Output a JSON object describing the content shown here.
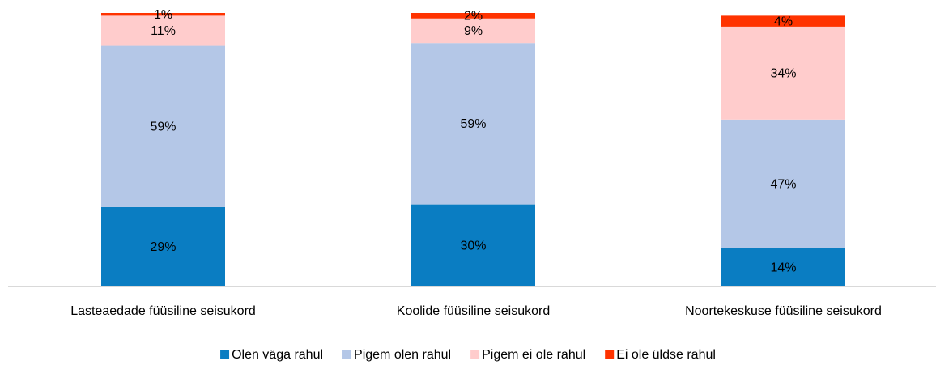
{
  "chart_data": {
    "type": "stacked_bar",
    "categories": [
      "Lasteaedade füüsiline seisukord",
      "Koolide füüsiline seisukord",
      "Noortekeskuse füüsiline seisukord"
    ],
    "series": [
      {
        "name": "Olen väga rahul",
        "color": "#0a7dc2",
        "values": [
          29,
          30,
          14
        ],
        "value_labels": [
          "29%",
          "30%",
          "14%"
        ]
      },
      {
        "name": "Pigem olen rahul",
        "color": "#b4c7e7",
        "values": [
          59,
          59,
          47
        ],
        "value_labels": [
          "59%",
          "59%",
          "47%"
        ]
      },
      {
        "name": "Pigem ei ole rahul",
        "color": "#ffcccc",
        "values": [
          11,
          9,
          34
        ],
        "value_labels": [
          "11%",
          "9%",
          "34%"
        ]
      },
      {
        "name": "Ei ole üldse rahul",
        "color": "#ff3300",
        "values": [
          1,
          2,
          4
        ],
        "value_labels": [
          "1%",
          "2%",
          "4%"
        ]
      }
    ],
    "ylim": [
      0,
      100
    ],
    "legend": "bottom"
  }
}
